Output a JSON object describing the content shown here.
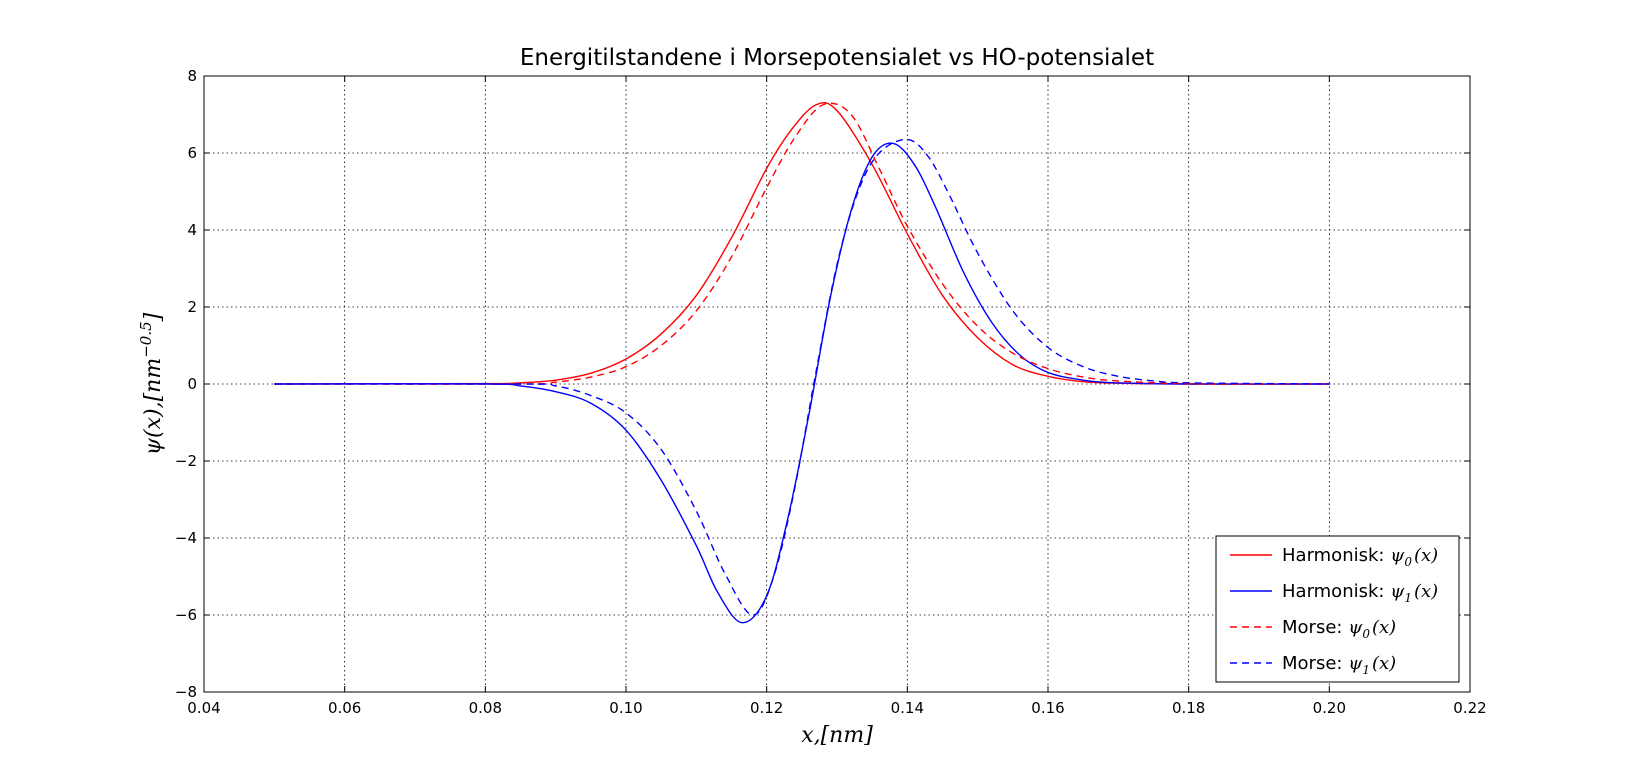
{
  "chart_data": {
    "type": "line",
    "title": "Energitilstandene i Morsepotensialet vs HO-potensialet",
    "xlabel": "x,[nm]",
    "ylabel": "ψ(x),[nm^-0.5]",
    "ylabel_base": "ψ(x),[nm",
    "ylabel_exp": "−0.5",
    "ylabel_close": "]",
    "xlim": [
      0.04,
      0.22
    ],
    "ylim": [
      -8,
      8
    ],
    "xticks": [
      "0.04",
      "0.06",
      "0.08",
      "0.10",
      "0.12",
      "0.14",
      "0.16",
      "0.18",
      "0.20",
      "0.22"
    ],
    "yticks": [
      "−8",
      "−6",
      "−4",
      "−2",
      "0",
      "2",
      "4",
      "6",
      "8"
    ],
    "grid": true,
    "legend_position": "lower-right",
    "series": [
      {
        "name": "Harmonisk: ψ0(x)",
        "prefix": "Harmonisk: ",
        "math": "ψ",
        "sub": "0",
        "suffix": "(x)",
        "color": "#ff0000",
        "style": "solid",
        "x": [
          0.05,
          0.08,
          0.085,
          0.09,
          0.095,
          0.1,
          0.105,
          0.11,
          0.115,
          0.12,
          0.1235,
          0.127,
          0.13,
          0.135,
          0.14,
          0.145,
          0.15,
          0.155,
          0.16,
          0.165,
          0.17,
          0.18,
          0.2
        ],
        "y": [
          0,
          0.01,
          0.03,
          0.1,
          0.28,
          0.65,
          1.3,
          2.3,
          3.8,
          5.6,
          6.6,
          7.25,
          7.1,
          5.7,
          3.9,
          2.3,
          1.2,
          0.5,
          0.2,
          0.06,
          0.02,
          0,
          0
        ]
      },
      {
        "name": "Harmonisk: ψ1(x)",
        "prefix": "Harmonisk: ",
        "math": "ψ",
        "sub": "1",
        "suffix": "(x)",
        "color": "#0000ff",
        "style": "solid",
        "x": [
          0.05,
          0.08,
          0.085,
          0.09,
          0.095,
          0.1,
          0.105,
          0.11,
          0.113,
          0.1165,
          0.12,
          0.123,
          0.126,
          0.129,
          0.132,
          0.135,
          0.138,
          0.141,
          0.144,
          0.148,
          0.152,
          0.156,
          0.16,
          0.165,
          0.17,
          0.18,
          0.2
        ],
        "y": [
          0,
          0,
          -0.05,
          -0.2,
          -0.5,
          -1.2,
          -2.5,
          -4.2,
          -5.4,
          -6.2,
          -5.5,
          -3.5,
          -0.8,
          2.2,
          4.5,
          5.9,
          6.25,
          5.7,
          4.6,
          2.9,
          1.6,
          0.75,
          0.3,
          0.1,
          0.03,
          0,
          0
        ]
      },
      {
        "name": "Morse: ψ0(x)",
        "prefix": "Morse: ",
        "math": "ψ",
        "sub": "0",
        "suffix": "(x)",
        "color": "#ff0000",
        "style": "dashed",
        "x": [
          0.05,
          0.085,
          0.09,
          0.095,
          0.1,
          0.105,
          0.11,
          0.115,
          0.12,
          0.124,
          0.128,
          0.132,
          0.136,
          0.14,
          0.145,
          0.15,
          0.155,
          0.16,
          0.165,
          0.17,
          0.18,
          0.2
        ],
        "y": [
          0,
          0,
          0.05,
          0.18,
          0.45,
          1.0,
          1.9,
          3.3,
          5.1,
          6.4,
          7.25,
          7.0,
          5.6,
          4.1,
          2.6,
          1.5,
          0.8,
          0.4,
          0.18,
          0.08,
          0.01,
          0
        ]
      },
      {
        "name": "Morse: ψ1(x)",
        "prefix": "Morse: ",
        "math": "ψ",
        "sub": "1",
        "suffix": "(x)",
        "color": "#0000ff",
        "style": "dashed",
        "x": [
          0.05,
          0.085,
          0.09,
          0.095,
          0.1,
          0.105,
          0.11,
          0.114,
          0.118,
          0.121,
          0.124,
          0.127,
          0.13,
          0.133,
          0.136,
          0.14,
          0.143,
          0.146,
          0.15,
          0.155,
          0.16,
          0.165,
          0.17,
          0.175,
          0.18,
          0.2
        ],
        "y": [
          0,
          0,
          -0.05,
          -0.3,
          -0.75,
          -1.7,
          -3.3,
          -4.9,
          -6.0,
          -5.0,
          -2.7,
          0.3,
          3.1,
          5.0,
          6.0,
          6.35,
          5.9,
          4.9,
          3.4,
          1.9,
          0.95,
          0.45,
          0.2,
          0.08,
          0.03,
          0
        ]
      }
    ]
  }
}
